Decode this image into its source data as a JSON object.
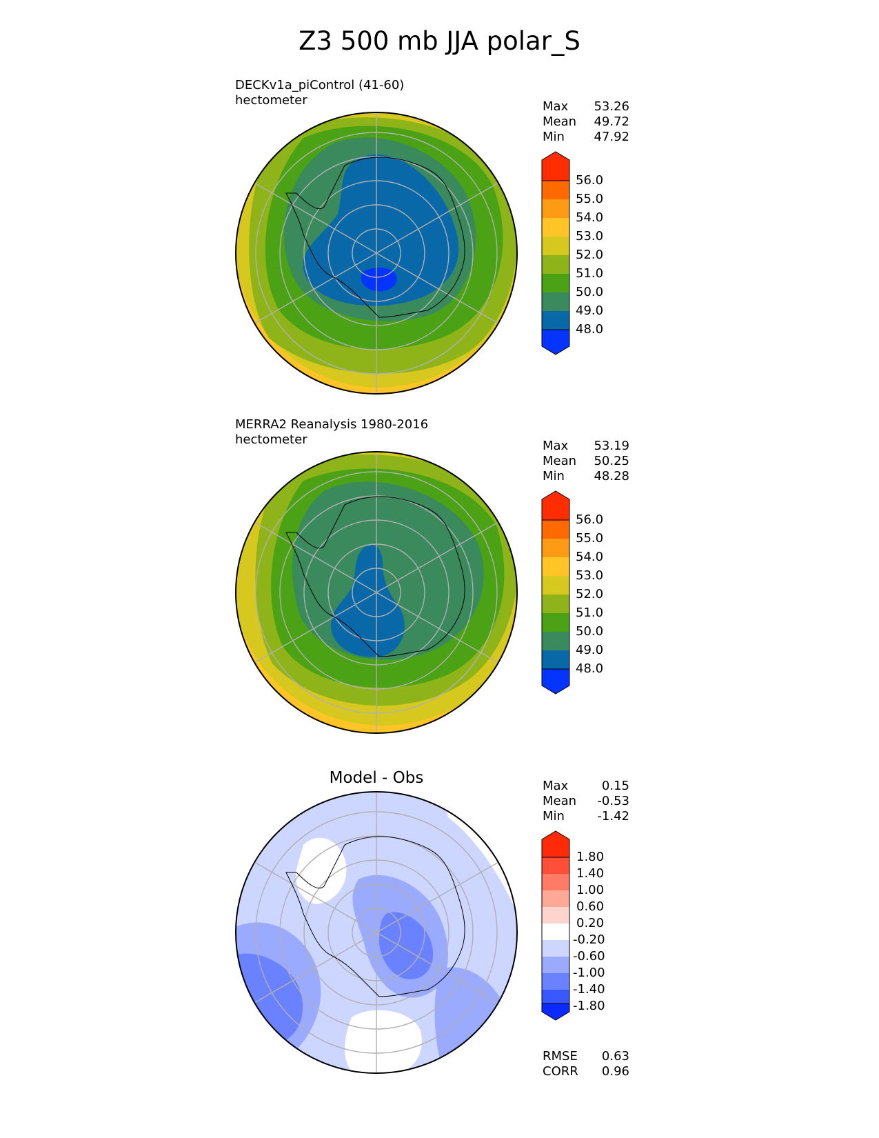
{
  "title": "Z3 500 mb JJA polar_S",
  "panels": [
    {
      "label_line1": "DECKv1a_piControl (41-60)",
      "label_line2": "hectometer",
      "stats": {
        "max_label": "Max",
        "max": "53.26",
        "mean_label": "Mean",
        "mean": "49.72",
        "min_label": "Min",
        "min": "47.92"
      }
    },
    {
      "label_line1": "MERRA2 Reanalysis 1980-2016",
      "label_line2": "hectometer",
      "stats": {
        "max_label": "Max",
        "max": "53.19",
        "mean_label": "Mean",
        "mean": "50.25",
        "min_label": "Min",
        "min": "48.28"
      }
    },
    {
      "title": "Model - Obs",
      "stats": {
        "max_label": "Max",
        "max": "0.15",
        "mean_label": "Mean",
        "mean": "-0.53",
        "min_label": "Min",
        "min": "-1.42"
      },
      "metrics": {
        "rmse_label": "RMSE",
        "rmse": "0.63",
        "corr_label": "CORR",
        "corr": "0.96"
      }
    }
  ],
  "colorbar_main": {
    "labels": [
      "56.0",
      "55.0",
      "54.0",
      "53.0",
      "52.0",
      "51.0",
      "50.0",
      "49.0",
      "48.0"
    ],
    "colors": [
      "#ff2d00",
      "#ff6a00",
      "#ff9a14",
      "#ffc425",
      "#d6c81e",
      "#8fb41a",
      "#4aa214",
      "#3a8a5e",
      "#0868a8",
      "#0634ff"
    ]
  },
  "colorbar_diff": {
    "labels": [
      "1.80",
      "1.40",
      "1.00",
      "0.60",
      "0.20",
      "-0.20",
      "-0.60",
      "-1.00",
      "-1.40",
      "-1.80"
    ],
    "colors": [
      "#ff2a08",
      "#ff4e3a",
      "#ff7b66",
      "#ffa898",
      "#ffd4cc",
      "#ffffff",
      "#ccd6ff",
      "#9aabff",
      "#6a82ff",
      "#3a58ff",
      "#0a2aff"
    ]
  },
  "map_colors": {
    "outer_yellow": "#d6c81e",
    "ring_olive": "#8fb41a",
    "ring_green": "#4aa214",
    "ring_teal": "#3a8a5e",
    "core_blue": "#0868a8",
    "min_blue": "#0634ff",
    "diff_white": "#ffffff",
    "diff_light": "#ccd6ff",
    "diff_mid": "#9aabff",
    "diff_dark": "#6a82ff",
    "diff_deepest": "#3a58ff",
    "gridline": "#b0b0b0",
    "coast": "#000000"
  }
}
